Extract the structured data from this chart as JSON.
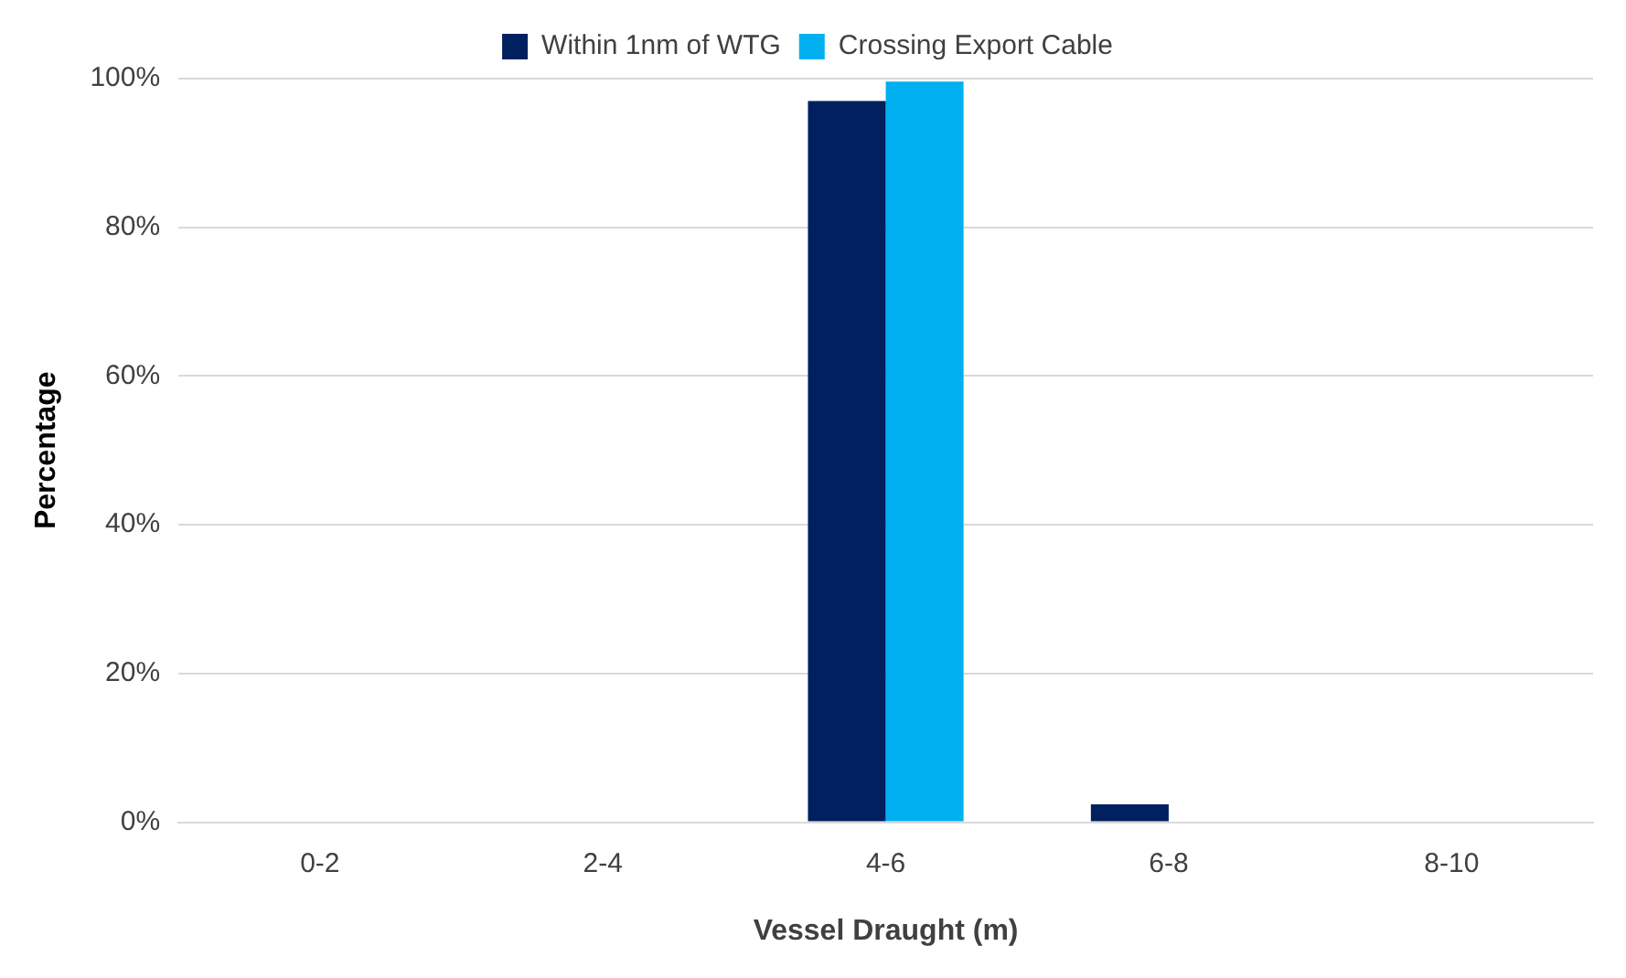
{
  "chart_data": {
    "type": "bar",
    "xlabel": "Vessel Draught (m)",
    "ylabel": "Percentage",
    "categories": [
      "0-2",
      "2-4",
      "4-6",
      "6-8",
      "8-10"
    ],
    "series": [
      {
        "name": "Within 1nm of WTG",
        "color": "#002060",
        "values": [
          0,
          0,
          97,
          2.4,
          0
        ]
      },
      {
        "name": "Crossing Export Cable",
        "color": "#00b0f0",
        "values": [
          0,
          0,
          99.6,
          0,
          0
        ]
      }
    ],
    "ylim": [
      0,
      100
    ],
    "yticks": [
      {
        "value": 0,
        "label": "0%"
      },
      {
        "value": 20,
        "label": "20%"
      },
      {
        "value": 40,
        "label": "40%"
      },
      {
        "value": 60,
        "label": "60%"
      },
      {
        "value": 80,
        "label": "80%"
      },
      {
        "value": 100,
        "label": "100%"
      }
    ],
    "grid": "y",
    "legend": "top"
  }
}
